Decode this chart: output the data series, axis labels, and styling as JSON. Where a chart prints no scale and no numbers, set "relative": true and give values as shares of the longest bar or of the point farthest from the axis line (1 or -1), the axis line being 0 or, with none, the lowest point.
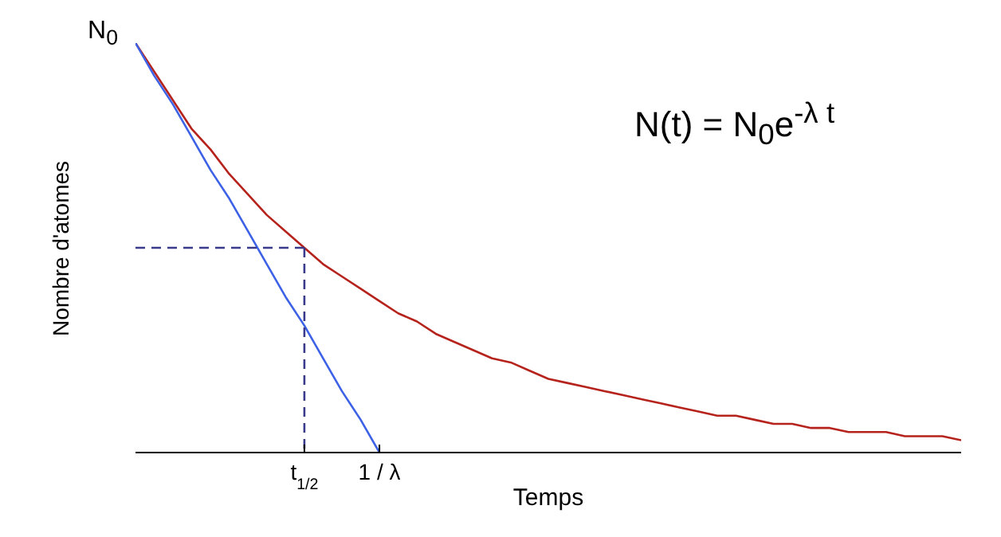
{
  "chart_data": {
    "type": "line",
    "relative": true,
    "xlabel": "Temps",
    "ylabel": "Nombre d'atomes",
    "annotations": [
      "N$_{0}$",
      "N(t) = N$_{0}$e$^{-λ t}$"
    ],
    "categories": [
      null,
      null,
      null,
      null,
      null,
      null,
      null,
      null,
      null,
      "t$_{1/2}$",
      null,
      null,
      null,
      "1 / λ",
      null,
      null,
      null,
      null,
      null,
      null,
      null,
      null,
      null,
      null,
      null,
      null,
      null,
      null,
      null,
      null,
      null,
      null,
      null,
      null,
      null,
      null,
      null,
      null,
      null,
      null,
      null,
      null,
      null,
      null,
      null
    ],
    "marker": "none",
    "series": [
      {
        "color": "#b5231c",
        "line_style": "solid",
        "values": [
          1,
          0.93,
          0.86,
          0.79,
          0.74,
          0.68,
          0.63,
          0.58,
          0.54,
          0.5,
          0.46,
          0.43,
          0.4,
          0.37,
          0.34,
          0.32,
          0.29,
          0.27,
          0.25,
          0.23,
          0.22,
          0.2,
          0.18,
          0.17,
          0.16,
          0.15,
          0.14,
          0.13,
          0.12,
          0.11,
          0.1,
          0.09,
          0.09,
          0.08,
          0.07,
          0.07,
          0.06,
          0.06,
          0.05,
          0.05,
          0.05,
          0.04,
          0.04,
          0.04,
          0.03
        ]
      },
      {
        "color": "#3d62e6",
        "line_style": "solid",
        "values": [
          1,
          0.92,
          0.85,
          0.77,
          0.69,
          0.62,
          0.54,
          0.46,
          0.38,
          0.31,
          0.23,
          0.15,
          0.08,
          0,
          null,
          null,
          null,
          null,
          null,
          null,
          null,
          null,
          null,
          null,
          null,
          null,
          null,
          null,
          null,
          null,
          null,
          null,
          null,
          null,
          null,
          null,
          null,
          null,
          null,
          null,
          null,
          null,
          null,
          null,
          null
        ]
      },
      {
        "color": "#3a3a8c",
        "line_style": "dashed",
        "values": [
          0.5,
          0.5,
          0.5,
          0.5,
          0.5,
          0.5,
          0.5,
          0.5,
          0.5,
          0.5,
          null,
          null,
          null,
          null,
          null,
          null,
          null,
          null,
          null,
          null,
          null,
          null,
          null,
          null,
          null,
          null,
          null,
          null,
          null,
          null,
          null,
          null,
          null,
          null,
          null,
          null,
          null,
          null,
          null,
          null,
          null,
          null,
          null,
          null,
          null
        ]
      },
      {
        "color": "#3a3a8c",
        "line_style": "dashed",
        "x": [
          "t$_{1/2}$",
          "t$_{1/2}$"
        ],
        "values": [
          0.5,
          0
        ]
      }
    ]
  }
}
